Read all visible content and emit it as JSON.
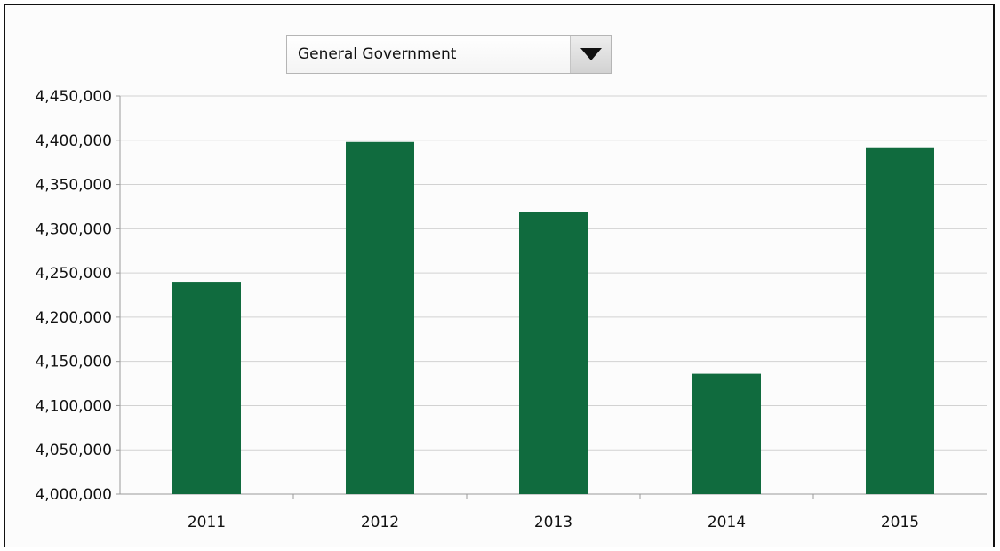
{
  "dropdown": {
    "selected": "General Government",
    "arrow_icon": "triangle-down-icon"
  },
  "colors": {
    "bar": "#106b3e",
    "grid": "#d2d2d2",
    "axis": "#9a9a9a"
  },
  "chart_data": {
    "type": "bar",
    "categories": [
      "2011",
      "2012",
      "2013",
      "2014",
      "2015"
    ],
    "values": [
      4240000,
      4398000,
      4319000,
      4136000,
      4392000
    ],
    "ylim": [
      4000000,
      4450000
    ],
    "yticks": [
      4000000,
      4050000,
      4100000,
      4150000,
      4200000,
      4250000,
      4300000,
      4350000,
      4400000,
      4450000
    ],
    "ytick_labels": [
      "4,000,000",
      "4,050,000",
      "4,100,000",
      "4,150,000",
      "4,200,000",
      "4,250,000",
      "4,300,000",
      "4,350,000",
      "4,400,000",
      "4,450,000"
    ],
    "title": "",
    "xlabel": "",
    "ylabel": "",
    "grid": true,
    "legend": "none"
  }
}
